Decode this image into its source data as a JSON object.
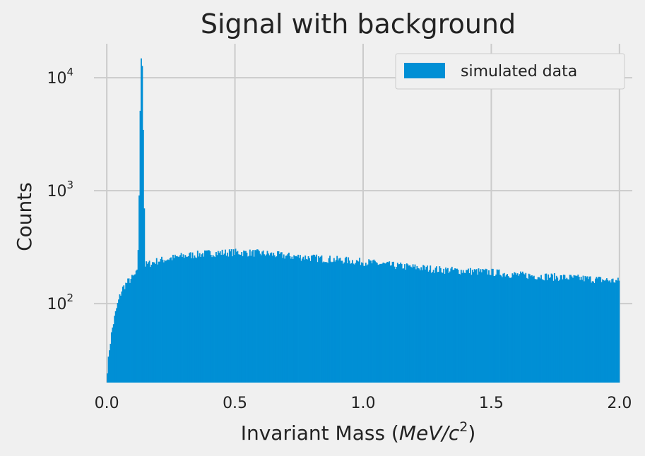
{
  "chart_data": {
    "type": "bar",
    "title": "Signal with background",
    "xlabel_prefix": "Invariant Mass (",
    "xlabel_math": "MeV/c",
    "xlabel_exp": "2",
    "xlabel_suffix": ")",
    "ylabel": "Counts",
    "x_scale": "linear",
    "y_scale": "log",
    "xlim": [
      -0.05,
      2.05
    ],
    "ylim": [
      20,
      20000
    ],
    "x_ticks": [
      0.0,
      0.5,
      1.0,
      1.5,
      2.0
    ],
    "x_tick_labels": [
      "0.0",
      "0.5",
      "1.0",
      "1.5",
      "2.0"
    ],
    "y_ticks": [
      100,
      1000,
      10000
    ],
    "y_tick_base": "10",
    "y_tick_exps": [
      "2",
      "3",
      "4"
    ],
    "grid": true,
    "legend_position": "top-right",
    "series": [
      {
        "name": "simulated data",
        "color": "#008fd5",
        "x_start": 0.0,
        "x_end": 2.0,
        "bin_width": 0.004,
        "profile": [
          [
            0.0,
            24
          ],
          [
            0.005,
            30
          ],
          [
            0.01,
            40
          ],
          [
            0.015,
            48
          ],
          [
            0.02,
            58
          ],
          [
            0.03,
            75
          ],
          [
            0.04,
            95
          ],
          [
            0.05,
            115
          ],
          [
            0.06,
            135
          ],
          [
            0.08,
            155
          ],
          [
            0.1,
            170
          ],
          [
            0.12,
            190
          ],
          [
            0.125,
            600
          ],
          [
            0.13,
            5000
          ],
          [
            0.134,
            15000
          ],
          [
            0.138,
            13000
          ],
          [
            0.142,
            3500
          ],
          [
            0.146,
            700
          ],
          [
            0.15,
            220
          ],
          [
            0.2,
            240
          ],
          [
            0.3,
            265
          ],
          [
            0.4,
            280
          ],
          [
            0.5,
            285
          ],
          [
            0.6,
            280
          ],
          [
            0.7,
            265
          ],
          [
            0.8,
            255
          ],
          [
            0.9,
            245
          ],
          [
            1.0,
            235
          ],
          [
            1.1,
            220
          ],
          [
            1.2,
            210
          ],
          [
            1.3,
            200
          ],
          [
            1.4,
            195
          ],
          [
            1.5,
            190
          ],
          [
            1.6,
            180
          ],
          [
            1.7,
            175
          ],
          [
            1.8,
            170
          ],
          [
            1.9,
            165
          ],
          [
            2.0,
            158
          ]
        ]
      }
    ]
  }
}
